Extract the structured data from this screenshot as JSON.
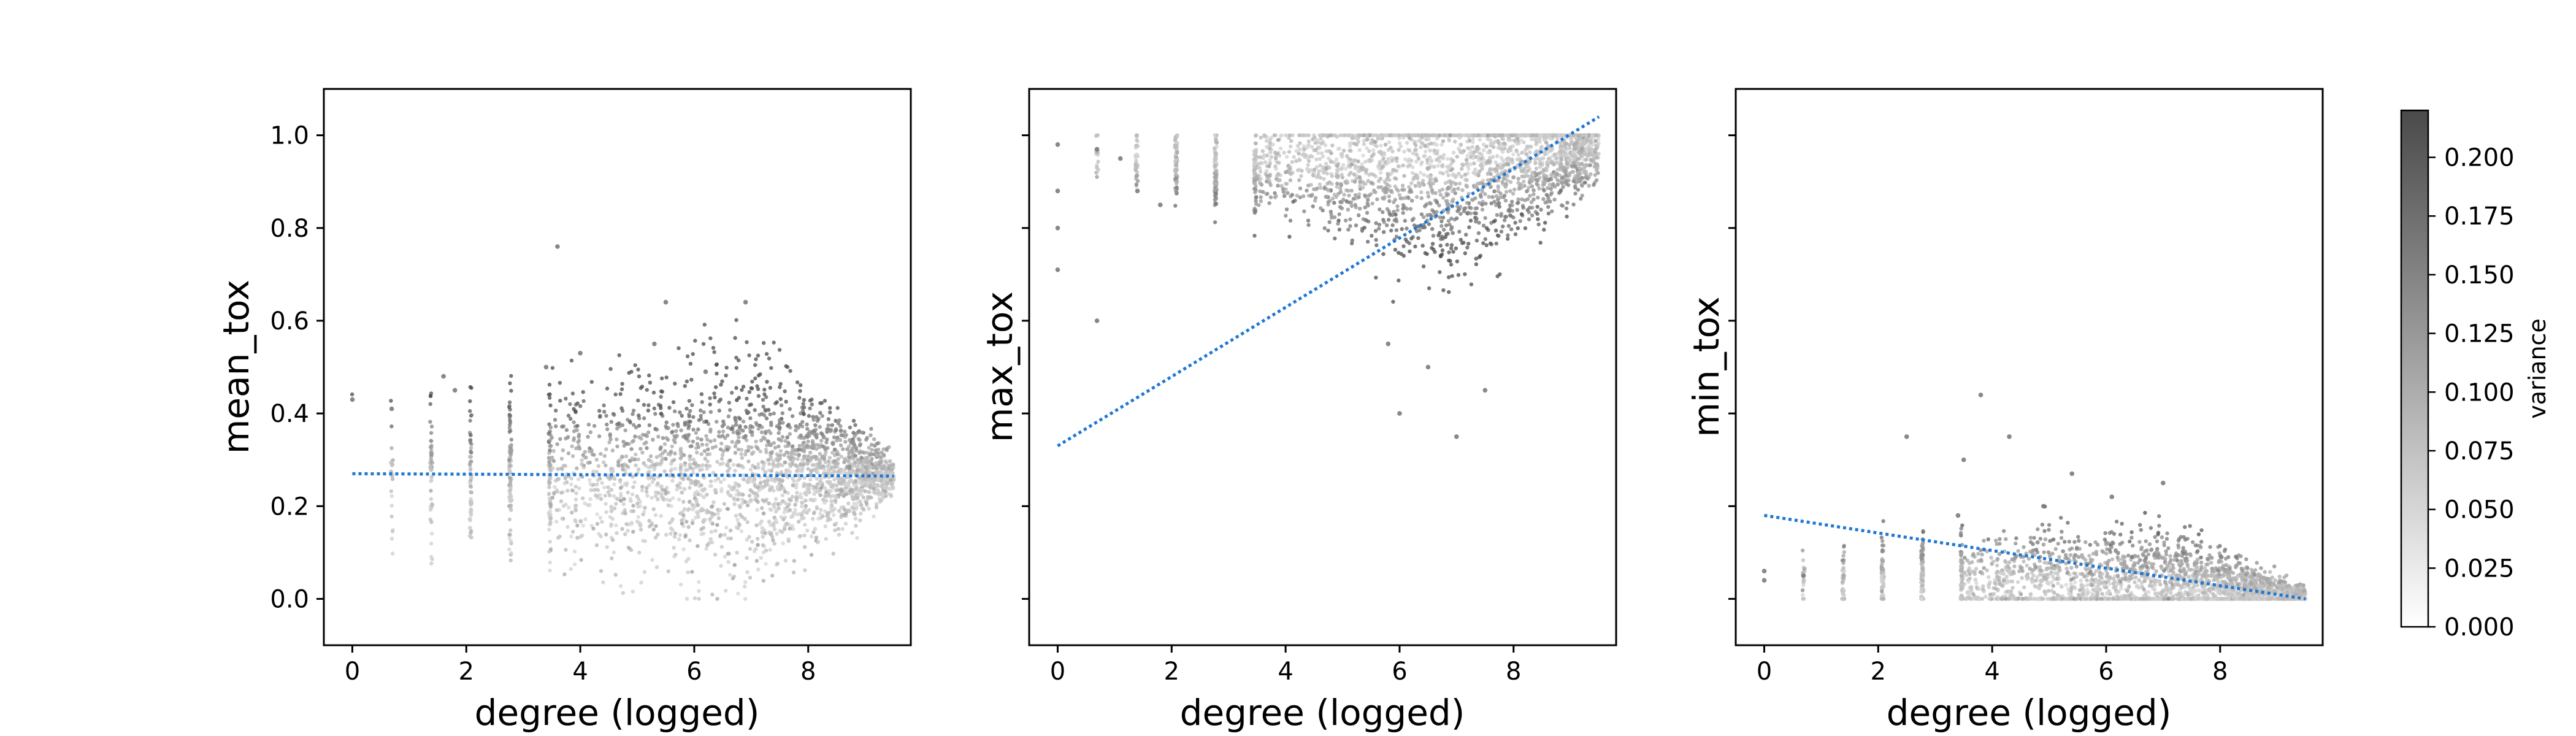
{
  "chart_data": {
    "type": "scatter",
    "shared_y_axis": true,
    "marker_color_scale": "white-to-dark-gray",
    "trend_line_color": "#1f77d4",
    "trend_line_style": "dotted",
    "x_ticks": [
      0,
      2,
      4,
      6,
      8
    ],
    "y_ticks": [
      0.0,
      0.2,
      0.4,
      0.6,
      0.8,
      1.0
    ],
    "y_tick_labels": [
      "0.0",
      "0.2",
      "0.4",
      "0.6",
      "0.8",
      "1.0"
    ],
    "xlim": [
      -0.5,
      9.8
    ],
    "ylim": [
      -0.1,
      1.1
    ],
    "panels": [
      {
        "xlabel": "degree (logged)",
        "ylabel": "mean_tox",
        "show_y_tick_labels": true,
        "trend": {
          "x": [
            0,
            9.5
          ],
          "y": [
            0.27,
            0.265
          ]
        },
        "cloud": {
          "x_range": [
            0,
            9.5
          ],
          "center": {
            "x": [
              0,
              4,
              7,
              9.5
            ],
            "y": [
              0.26,
              0.27,
              0.28,
              0.265
            ]
          },
          "spread": {
            "x": [
              0,
              4,
              7,
              9.5
            ],
            "y": [
              0.08,
              0.1,
              0.12,
              0.02
            ]
          },
          "dark_extreme": "high",
          "sample_points": [
            {
              "x": 0,
              "y": 0.43
            },
            {
              "x": 0.69,
              "y": 0.41
            },
            {
              "x": 1.6,
              "y": 0.48
            },
            {
              "x": 1.8,
              "y": 0.45
            },
            {
              "x": 3.4,
              "y": 0.5
            },
            {
              "x": 4.0,
              "y": 0.53
            },
            {
              "x": 5.5,
              "y": 0.64
            },
            {
              "x": 6.9,
              "y": 0.64
            },
            {
              "x": 5.3,
              "y": 0.55
            },
            {
              "x": 6.2,
              "y": 0.49
            },
            {
              "x": 3.6,
              "y": 0.76
            }
          ]
        }
      },
      {
        "xlabel": "degree (logged)",
        "ylabel": "max_tox",
        "show_y_tick_labels": false,
        "trend": {
          "x": [
            0,
            9.5
          ],
          "y": [
            0.33,
            1.04
          ]
        },
        "cloud": {
          "x_range": [
            0,
            9.5
          ],
          "center": {
            "x": [
              0,
              4,
              7,
              9.5
            ],
            "y": [
              0.95,
              0.93,
              0.92,
              0.97
            ]
          },
          "spread": {
            "x": [
              0,
              4,
              7,
              9.5
            ],
            "y": [
              0.03,
              0.05,
              0.12,
              0.03
            ]
          },
          "dark_extreme": "low",
          "sample_points": [
            {
              "x": 0,
              "y": 0.98
            },
            {
              "x": 0,
              "y": 0.88
            },
            {
              "x": 0,
              "y": 0.8
            },
            {
              "x": 0,
              "y": 0.71
            },
            {
              "x": 0.69,
              "y": 0.97
            },
            {
              "x": 0.69,
              "y": 0.6
            },
            {
              "x": 1.1,
              "y": 0.95
            },
            {
              "x": 1.4,
              "y": 0.88
            },
            {
              "x": 1.8,
              "y": 0.85
            },
            {
              "x": 6,
              "y": 0.4
            },
            {
              "x": 7,
              "y": 0.35
            },
            {
              "x": 6.5,
              "y": 0.5
            },
            {
              "x": 7.5,
              "y": 0.45
            },
            {
              "x": 5.8,
              "y": 0.55
            }
          ]
        }
      },
      {
        "xlabel": "degree (logged)",
        "ylabel": "min_tox",
        "show_y_tick_labels": false,
        "trend": {
          "x": [
            0,
            9.5
          ],
          "y": [
            0.18,
            0.0
          ]
        },
        "cloud": {
          "x_range": [
            0,
            9.5
          ],
          "center": {
            "x": [
              0,
              4,
              7,
              9.5
            ],
            "y": [
              0.05,
              0.04,
              0.03,
              0.005
            ]
          },
          "spread": {
            "x": [
              0,
              4,
              7,
              9.5
            ],
            "y": [
              0.03,
              0.05,
              0.06,
              0.01
            ]
          },
          "dark_extreme": "high",
          "sample_points": [
            {
              "x": 0,
              "y": 0.06
            },
            {
              "x": 0,
              "y": 0.04
            },
            {
              "x": 0.69,
              "y": 0.05
            },
            {
              "x": 3.4,
              "y": 0.18
            },
            {
              "x": 4.3,
              "y": 0.35
            },
            {
              "x": 5.4,
              "y": 0.27
            },
            {
              "x": 4.9,
              "y": 0.2
            },
            {
              "x": 6.1,
              "y": 0.22
            },
            {
              "x": 7.0,
              "y": 0.25
            },
            {
              "x": 2.5,
              "y": 0.35
            },
            {
              "x": 3.8,
              "y": 0.44
            },
            {
              "x": 3.5,
              "y": 0.3
            }
          ]
        }
      }
    ],
    "colorbar": {
      "label": "variance",
      "range": [
        0.0,
        0.22
      ],
      "ticks": [
        0.0,
        0.025,
        0.05,
        0.075,
        0.1,
        0.125,
        0.15,
        0.175,
        0.2
      ],
      "tick_labels": [
        "0.000",
        "0.025",
        "0.050",
        "0.075",
        "0.100",
        "0.125",
        "0.150",
        "0.175",
        "0.200"
      ],
      "colors": {
        "low": "#ffffff",
        "high": "#4a4a4a"
      }
    }
  }
}
